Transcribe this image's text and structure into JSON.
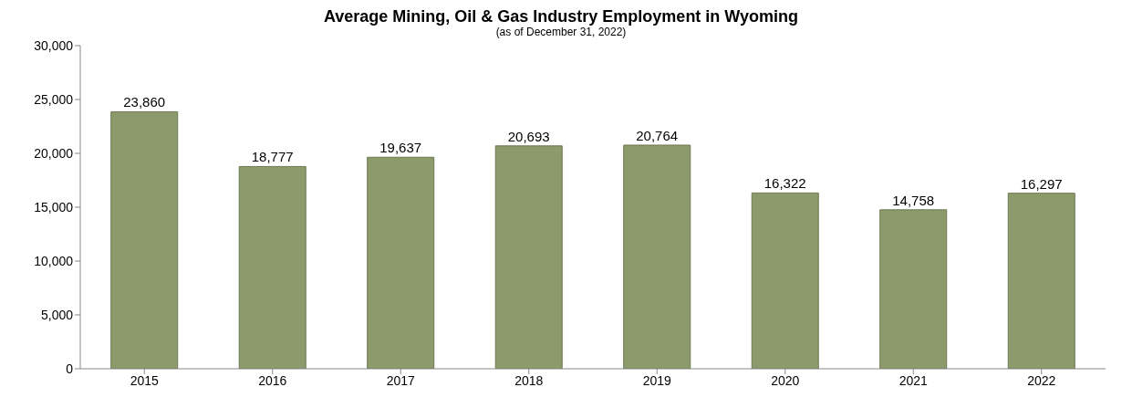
{
  "chart_data": {
    "type": "bar",
    "title": "Average Mining, Oil & Gas Industry Employment in Wyoming",
    "subtitle": "(as of December 31, 2022)",
    "categories": [
      "2015",
      "2016",
      "2017",
      "2018",
      "2019",
      "2020",
      "2021",
      "2022"
    ],
    "values": [
      23860,
      18777,
      19637,
      20693,
      20764,
      16322,
      14758,
      16297
    ],
    "value_labels": [
      "23,860",
      "18,777",
      "19,637",
      "20,693",
      "20,764",
      "16,322",
      "14,758",
      "16,297"
    ],
    "color": "#8c9a6c",
    "ylim": [
      0,
      30000
    ],
    "yticks": [
      0,
      {
        "value": 5000,
        "label": "5,000"
      },
      {
        "value": 10000,
        "label": "10,000"
      },
      {
        "value": 15000,
        "label": "15,000"
      },
      {
        "value": 20000,
        "label": "20,000"
      },
      {
        "value": 25000,
        "label": "25,000"
      },
      {
        "value": 30000,
        "label": "30,000"
      }
    ],
    "grid": false,
    "legend": false
  }
}
